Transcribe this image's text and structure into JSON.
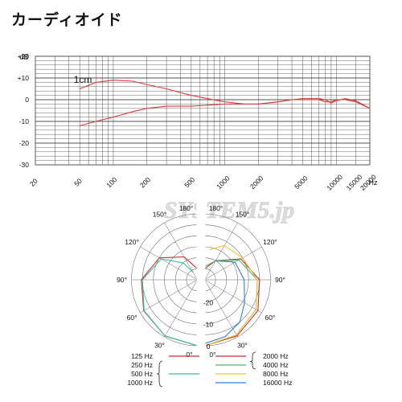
{
  "page": {
    "title": "カーディオイド"
  },
  "watermark": "SYSTEM5.jp",
  "colors": {
    "grid": "#555555",
    "curve": "#d63a3a",
    "hz125": "#c83232",
    "hz250_1000": "#2ec3a0",
    "hz2000": "#c83232",
    "hz4000": "#59b46a",
    "hz8000": "#f2c12e",
    "hz16000": "#2f7fd6",
    "polar_grid": "#666666"
  },
  "chart_data": [
    {
      "type": "line",
      "title": "",
      "xlabel": "Hz",
      "ylabel": "dB",
      "xscale": "log",
      "xlim": [
        20,
        20000
      ],
      "ylim": [
        -30,
        20
      ],
      "x_ticks": [
        20,
        50,
        100,
        200,
        500,
        1000,
        2000,
        5000,
        10000,
        15000,
        20000
      ],
      "x_tick_labels": [
        "20",
        "50",
        "100",
        "200",
        "500",
        "1000",
        "2000",
        "5000",
        "10000",
        "15000",
        "20000"
      ],
      "y_ticks": [
        20,
        10,
        0,
        -10,
        -20,
        -30
      ],
      "y_tick_labels": [
        "+20",
        "+10",
        "0",
        "-10",
        "-20",
        "-30"
      ],
      "grid": true,
      "annotations": [
        {
          "text": "1cm",
          "x": 40,
          "y": 10
        }
      ],
      "series": [
        {
          "x": [
            50,
            70,
            100,
            150,
            200,
            300,
            500,
            700,
            1000,
            1500,
            2000,
            3000,
            4000,
            5000,
            6000,
            7000,
            8000,
            9000,
            10000,
            12000,
            15000,
            20000
          ],
          "y": [
            -12,
            -10,
            -8,
            -5.5,
            -4,
            -3,
            -3,
            -2.5,
            -2,
            -2,
            -2,
            -1,
            0,
            0,
            0,
            0,
            -1,
            -1,
            0,
            0,
            -1,
            -4
          ]
        },
        {
          "x": [
            50,
            70,
            100,
            150,
            200,
            300,
            500,
            700,
            1000,
            1500,
            2000,
            3000,
            4000,
            5000,
            6000,
            7000,
            8000,
            9000,
            10000,
            12000,
            15000,
            20000
          ],
          "y": [
            5,
            8,
            9,
            8.5,
            7,
            5,
            2,
            0.5,
            -1,
            -2,
            -2,
            -1,
            0,
            0.5,
            0.5,
            0.5,
            0,
            -1.5,
            -0.5,
            0.5,
            -0.5,
            -4
          ]
        }
      ]
    },
    {
      "type": "polar",
      "title": "",
      "angle_labels_left": [
        "180°",
        "150°",
        "120°",
        "90°",
        "60°",
        "30°",
        "0°"
      ],
      "angle_labels_right": [
        "180°",
        "150°",
        "120°",
        "90°",
        "60°",
        "30°",
        "0°"
      ],
      "radial_labels": [
        "-20",
        "-10",
        "0"
      ],
      "legend": [
        {
          "label": "125 Hz",
          "color": "#c83232",
          "side": "left"
        },
        {
          "label": "250 Hz",
          "color": "#2ec3a0",
          "side": "left",
          "group": true
        },
        {
          "label": "500 Hz",
          "color": "#2ec3a0",
          "side": "left",
          "group": true
        },
        {
          "label": "1000 Hz",
          "color": "#2ec3a0",
          "side": "left",
          "group": true
        },
        {
          "label": "2000 Hz",
          "color": "#c83232",
          "side": "right"
        },
        {
          "label": "4000 Hz",
          "color": "#59b46a",
          "side": "right"
        },
        {
          "label": "8000 Hz",
          "color": "#f2c12e",
          "side": "right"
        },
        {
          "label": "16000 Hz",
          "color": "#2f7fd6",
          "side": "right"
        }
      ],
      "series_left": [
        {
          "name": "125 Hz",
          "color": "#c83232",
          "theta": [
            0,
            30,
            60,
            90,
            120,
            150,
            180
          ],
          "db": [
            0,
            -0.5,
            -1.8,
            -4.5,
            -10,
            -18,
            -25
          ]
        },
        {
          "name": "250-1000 Hz",
          "color": "#2ec3a0",
          "theta": [
            0,
            30,
            60,
            90,
            120,
            140,
            150
          ],
          "db": [
            0,
            -0.5,
            -2,
            -5,
            -11,
            -20,
            -26
          ]
        }
      ],
      "series_right": [
        {
          "name": "2000 Hz",
          "color": "#c83232",
          "theta": [
            0,
            30,
            60,
            90,
            120,
            150,
            180
          ],
          "db": [
            0,
            -0.5,
            -2,
            -5,
            -11,
            -20,
            -25
          ]
        },
        {
          "name": "4000 Hz",
          "color": "#59b46a",
          "theta": [
            0,
            30,
            60,
            90,
            120,
            150,
            180
          ],
          "db": [
            0,
            -1,
            -3,
            -6,
            -12,
            -20,
            -24
          ]
        },
        {
          "name": "8000 Hz",
          "color": "#f2c12e",
          "theta": [
            0,
            30,
            60,
            90,
            120,
            150,
            170
          ],
          "db": [
            0,
            -1,
            -3,
            -6,
            -10,
            -12,
            -16
          ]
        },
        {
          "name": "16000 Hz",
          "color": "#2f7fd6",
          "theta": [
            0,
            20,
            40,
            60,
            90,
            120,
            150
          ],
          "db": [
            -1,
            -2.5,
            -5,
            -9,
            -12,
            -14,
            -20
          ]
        }
      ]
    }
  ]
}
